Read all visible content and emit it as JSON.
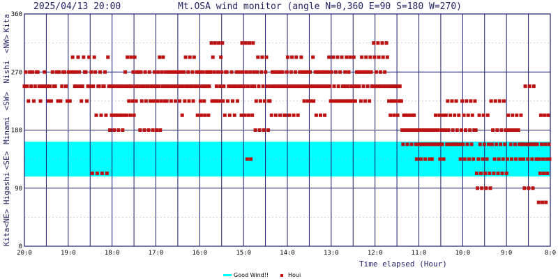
{
  "header": {
    "datetime": "2025/04/13 20:00",
    "title": "Mt.OSA wind monitor (angle N=0,360 E=90 S=180 W=270)"
  },
  "chart_data": {
    "type": "scatter",
    "xlabel": "Time elapsed (Hour)",
    "ylabel_segments": [
      "Kita",
      "<NE>",
      "Higashi",
      "<SE>",
      "Minami",
      "<SW>",
      "Nishi",
      "<NW>",
      "Kita"
    ],
    "x_ticks": [
      "20:0",
      "19:0",
      "18:0",
      "17:0",
      "16:0",
      "15:0",
      "14:0",
      "13:0",
      "12:0",
      "11:0",
      "10:0",
      "9:0",
      "8:0"
    ],
    "y_ticks": [
      0,
      90,
      180,
      270,
      360
    ],
    "ylim": [
      0,
      360
    ],
    "xlim_hours_elapsed": [
      0,
      12
    ],
    "good_wind_band": [
      108,
      162
    ],
    "legend": [
      {
        "label": "Good Wind!!",
        "color": "#00ffff"
      },
      {
        "label": "Houi",
        "color": "#bb1111"
      }
    ],
    "points_hours_elapsed": [],
    "segments_direction_deg": [
      {
        "start": 0.0,
        "end": 0.55,
        "values": [
          248,
          270,
          248,
          225,
          248,
          270
        ]
      },
      {
        "start": 0.55,
        "end": 1.1,
        "values": [
          248,
          270,
          225,
          270,
          248,
          225
        ]
      },
      {
        "start": 1.1,
        "end": 1.55,
        "values": [
          270,
          248,
          270,
          225,
          248,
          293
        ]
      },
      {
        "start": 1.55,
        "end": 1.95,
        "values": [
          248,
          270,
          203,
          113,
          248,
          293
        ]
      },
      {
        "start": 1.95,
        "end": 2.3,
        "values": [
          203,
          180,
          248,
          203,
          225,
          248
        ]
      },
      {
        "start": 2.3,
        "end": 2.6,
        "values": [
          248,
          203,
          293,
          248,
          225,
          270
        ]
      },
      {
        "start": 2.6,
        "end": 2.95,
        "values": [
          225,
          248,
          270,
          248,
          180,
          270
        ]
      },
      {
        "start": 2.95,
        "end": 3.25,
        "values": [
          270,
          248,
          293,
          248,
          180,
          225
        ]
      },
      {
        "start": 3.25,
        "end": 3.6,
        "values": [
          248,
          270,
          225,
          248,
          270,
          225
        ]
      },
      {
        "start": 3.6,
        "end": 3.95,
        "values": [
          203,
          248,
          270,
          225,
          293,
          248
        ]
      },
      {
        "start": 3.95,
        "end": 4.25,
        "values": [
          248,
          270,
          225,
          203,
          248,
          270
        ]
      },
      {
        "start": 4.25,
        "end": 4.55,
        "values": [
          270,
          315,
          225,
          248,
          293,
          225
        ]
      },
      {
        "start": 4.55,
        "end": 4.95,
        "values": [
          248,
          270,
          225,
          248,
          203,
          270
        ]
      },
      {
        "start": 4.95,
        "end": 5.25,
        "values": [
          248,
          203,
          315,
          270,
          135,
          248
        ]
      },
      {
        "start": 5.25,
        "end": 5.6,
        "values": [
          225,
          248,
          270,
          293,
          248,
          180
        ]
      },
      {
        "start": 5.6,
        "end": 5.95,
        "values": [
          248,
          270,
          225,
          248,
          203,
          270
        ]
      },
      {
        "start": 5.95,
        "end": 6.3,
        "values": [
          248,
          270,
          225,
          293,
          248,
          203
        ]
      },
      {
        "start": 6.3,
        "end": 6.6,
        "values": [
          270,
          248,
          225,
          248,
          293,
          270
        ]
      },
      {
        "start": 6.6,
        "end": 6.95,
        "values": [
          225,
          248,
          270,
          203,
          248,
          270
        ]
      },
      {
        "start": 6.95,
        "end": 7.3,
        "values": [
          248,
          270,
          225,
          293,
          248,
          225
        ]
      },
      {
        "start": 7.3,
        "end": 7.6,
        "values": [
          225,
          248,
          270,
          225,
          293,
          248
        ]
      },
      {
        "start": 7.6,
        "end": 7.95,
        "values": [
          248,
          270,
          225,
          293,
          248,
          270
        ]
      },
      {
        "start": 7.95,
        "end": 8.3,
        "values": [
          270,
          248,
          315,
          293,
          225,
          248
        ]
      },
      {
        "start": 8.3,
        "end": 8.6,
        "values": [
          225,
          248,
          203,
          248,
          225,
          248
        ]
      },
      {
        "start": 8.6,
        "end": 8.95,
        "values": [
          180,
          203,
          225,
          180,
          158,
          203
        ]
      },
      {
        "start": 8.95,
        "end": 9.3,
        "values": [
          180,
          158,
          113,
          180,
          158,
          135
        ]
      },
      {
        "start": 9.3,
        "end": 9.6,
        "values": [
          180,
          158,
          203,
          135,
          180,
          158
        ]
      },
      {
        "start": 9.6,
        "end": 9.95,
        "values": [
          180,
          203,
          158,
          225,
          180,
          158
        ]
      },
      {
        "start": 9.95,
        "end": 10.3,
        "values": [
          180,
          158,
          203,
          135,
          180,
          225
        ]
      },
      {
        "start": 10.3,
        "end": 10.65,
        "values": [
          158,
          180,
          113,
          90,
          135,
          203
        ]
      },
      {
        "start": 10.65,
        "end": 11.0,
        "values": [
          180,
          158,
          113,
          135,
          225,
          158
        ]
      },
      {
        "start": 11.0,
        "end": 11.35,
        "values": [
          180,
          158,
          113,
          135,
          203,
          180
        ]
      },
      {
        "start": 11.35,
        "end": 11.7,
        "values": [
          158,
          135,
          113,
          90,
          248,
          158
        ]
      },
      {
        "start": 11.7,
        "end": 12.0,
        "values": [
          135,
          113,
          203,
          158,
          135,
          68
        ]
      }
    ]
  }
}
